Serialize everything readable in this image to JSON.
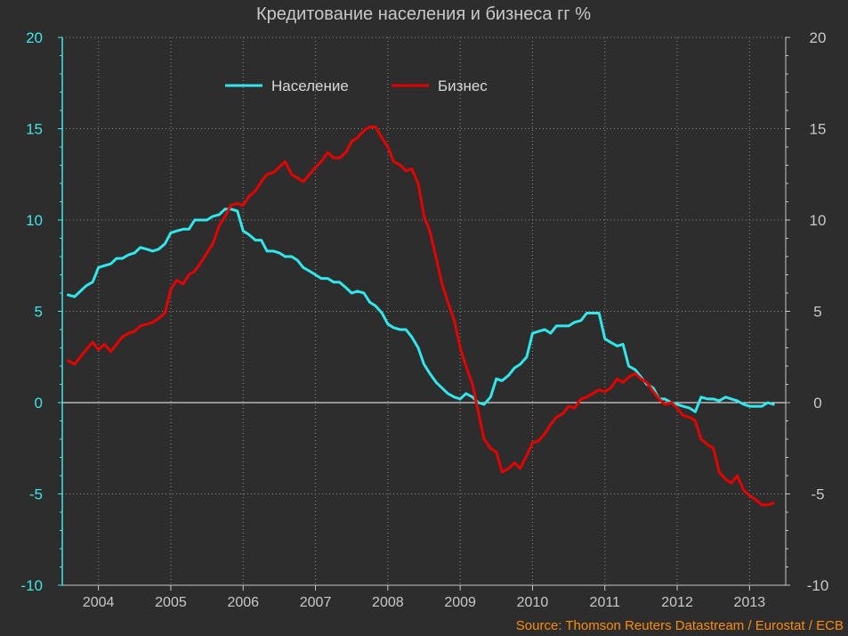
{
  "chart_data": {
    "type": "line",
    "title": "Кредитование населения и бизнеса гг %",
    "source": "Source: Thomson Reuters Datastream / Eurostat / ECB",
    "ylim": [
      -10,
      20
    ],
    "y_ticks": [
      "20",
      "15",
      "10",
      "5",
      "0",
      "-5",
      "-10"
    ],
    "y_tick_values": [
      20,
      15,
      10,
      5,
      0,
      -5,
      -10
    ],
    "x_range": [
      2003.5,
      2013.5
    ],
    "x_tick_labels": [
      "2004",
      "2005",
      "2006",
      "2007",
      "2008",
      "2009",
      "2010",
      "2011",
      "2012",
      "2013"
    ],
    "grid": true,
    "legend_position": "top-center",
    "colors": {
      "background": "#2d2d2d",
      "grid": "#888888",
      "zero_line": "#ffffff",
      "axis_left": "#3de6e6",
      "axis_right": "#c8c8c8",
      "source": "#ff8c00"
    },
    "series": [
      {
        "name": "Население",
        "color": "#30e8ec",
        "x": [
          2003.58,
          2003.67,
          2003.75,
          2003.83,
          2003.92,
          2004.0,
          2004.08,
          2004.17,
          2004.25,
          2004.33,
          2004.42,
          2004.5,
          2004.58,
          2004.67,
          2004.75,
          2004.83,
          2004.92,
          2005.0,
          2005.08,
          2005.17,
          2005.25,
          2005.33,
          2005.42,
          2005.5,
          2005.58,
          2005.67,
          2005.75,
          2005.83,
          2005.92,
          2006.0,
          2006.08,
          2006.17,
          2006.25,
          2006.33,
          2006.42,
          2006.5,
          2006.58,
          2006.67,
          2006.75,
          2006.83,
          2006.92,
          2007.0,
          2007.08,
          2007.17,
          2007.25,
          2007.33,
          2007.42,
          2007.5,
          2007.58,
          2007.67,
          2007.75,
          2007.83,
          2007.92,
          2008.0,
          2008.08,
          2008.17,
          2008.25,
          2008.33,
          2008.42,
          2008.5,
          2008.58,
          2008.67,
          2008.75,
          2008.83,
          2008.92,
          2009.0,
          2009.08,
          2009.17,
          2009.25,
          2009.33,
          2009.42,
          2009.5,
          2009.58,
          2009.67,
          2009.75,
          2009.83,
          2009.92,
          2010.0,
          2010.08,
          2010.17,
          2010.25,
          2010.33,
          2010.42,
          2010.5,
          2010.58,
          2010.67,
          2010.75,
          2010.83,
          2010.92,
          2011.0,
          2011.08,
          2011.17,
          2011.25,
          2011.33,
          2011.42,
          2011.5,
          2011.58,
          2011.67,
          2011.75,
          2011.83,
          2011.92,
          2012.0,
          2012.08,
          2012.17,
          2012.25,
          2012.33,
          2012.42,
          2012.5,
          2012.58,
          2012.67,
          2012.75,
          2012.83,
          2012.92,
          2013.0,
          2013.08,
          2013.17,
          2013.25,
          2013.33
        ],
        "values": [
          5.9,
          5.8,
          6.1,
          6.4,
          6.6,
          7.4,
          7.5,
          7.6,
          7.9,
          7.9,
          8.1,
          8.2,
          8.5,
          8.4,
          8.3,
          8.4,
          8.7,
          9.3,
          9.4,
          9.5,
          9.5,
          10.0,
          10.0,
          10.0,
          10.2,
          10.3,
          10.6,
          10.6,
          10.5,
          9.4,
          9.2,
          8.9,
          8.9,
          8.3,
          8.3,
          8.2,
          8.0,
          8.0,
          7.8,
          7.4,
          7.2,
          7.0,
          6.8,
          6.8,
          6.6,
          6.6,
          6.3,
          6.0,
          6.1,
          6.0,
          5.5,
          5.3,
          4.9,
          4.3,
          4.1,
          4.0,
          4.0,
          3.6,
          3.0,
          2.1,
          1.6,
          1.1,
          0.8,
          0.5,
          0.3,
          0.2,
          0.5,
          0.3,
          0.0,
          -0.1,
          0.3,
          1.3,
          1.2,
          1.5,
          1.9,
          2.1,
          2.5,
          3.8,
          3.9,
          4.0,
          3.8,
          4.2,
          4.2,
          4.2,
          4.4,
          4.5,
          4.9,
          4.9,
          4.9,
          3.5,
          3.3,
          3.1,
          3.2,
          2.0,
          1.8,
          1.4,
          1.0,
          0.8,
          0.2,
          0.2,
          0.0,
          -0.1,
          -0.2,
          -0.3,
          -0.5,
          0.3,
          0.2,
          0.2,
          0.1,
          0.3,
          0.2,
          0.1,
          -0.1,
          -0.2,
          -0.2,
          -0.2,
          0.0,
          -0.1
        ]
      },
      {
        "name": "Бизнес",
        "color": "#e60000",
        "x": [
          2003.58,
          2003.67,
          2003.75,
          2003.83,
          2003.92,
          2004.0,
          2004.08,
          2004.17,
          2004.25,
          2004.33,
          2004.42,
          2004.5,
          2004.58,
          2004.67,
          2004.75,
          2004.83,
          2004.92,
          2005.0,
          2005.08,
          2005.17,
          2005.25,
          2005.33,
          2005.42,
          2005.5,
          2005.58,
          2005.67,
          2005.75,
          2005.83,
          2005.92,
          2006.0,
          2006.08,
          2006.17,
          2006.25,
          2006.33,
          2006.42,
          2006.5,
          2006.58,
          2006.67,
          2006.75,
          2006.83,
          2006.92,
          2007.0,
          2007.08,
          2007.17,
          2007.25,
          2007.33,
          2007.42,
          2007.5,
          2007.58,
          2007.67,
          2007.75,
          2007.83,
          2007.92,
          2008.0,
          2008.08,
          2008.17,
          2008.25,
          2008.33,
          2008.42,
          2008.5,
          2008.58,
          2008.67,
          2008.75,
          2008.83,
          2008.92,
          2009.0,
          2009.08,
          2009.17,
          2009.25,
          2009.33,
          2009.42,
          2009.5,
          2009.58,
          2009.67,
          2009.75,
          2009.83,
          2009.92,
          2010.0,
          2010.08,
          2010.17,
          2010.25,
          2010.33,
          2010.42,
          2010.5,
          2010.58,
          2010.67,
          2010.75,
          2010.83,
          2010.92,
          2011.0,
          2011.08,
          2011.17,
          2011.25,
          2011.33,
          2011.42,
          2011.5,
          2011.58,
          2011.67,
          2011.75,
          2011.83,
          2011.92,
          2012.0,
          2012.08,
          2012.17,
          2012.25,
          2012.33,
          2012.42,
          2012.5,
          2012.58,
          2012.67,
          2012.75,
          2012.83,
          2012.92,
          2013.0,
          2013.08,
          2013.17,
          2013.25,
          2013.33
        ],
        "values": [
          2.3,
          2.1,
          2.5,
          2.9,
          3.3,
          2.9,
          3.2,
          2.8,
          3.2,
          3.6,
          3.8,
          3.9,
          4.2,
          4.3,
          4.4,
          4.6,
          4.9,
          6.2,
          6.7,
          6.5,
          7.0,
          7.2,
          7.7,
          8.2,
          8.7,
          9.7,
          10.2,
          10.8,
          10.9,
          10.8,
          11.3,
          11.6,
          12.1,
          12.5,
          12.6,
          12.9,
          13.2,
          12.5,
          12.3,
          12.1,
          12.5,
          12.9,
          13.2,
          13.7,
          13.4,
          13.4,
          13.7,
          14.3,
          14.5,
          14.9,
          15.1,
          15.1,
          14.5,
          14.0,
          13.2,
          13.0,
          12.7,
          12.8,
          12.0,
          10.2,
          9.4,
          7.9,
          6.5,
          5.5,
          4.5,
          3.0,
          2.0,
          1.0,
          -0.5,
          -2.0,
          -2.5,
          -2.7,
          -3.8,
          -3.6,
          -3.3,
          -3.6,
          -2.9,
          -2.2,
          -2.1,
          -1.7,
          -1.2,
          -0.8,
          -0.6,
          -0.2,
          -0.3,
          0.2,
          0.3,
          0.5,
          0.7,
          0.6,
          0.8,
          1.3,
          1.1,
          1.4,
          1.6,
          1.3,
          1.1,
          0.6,
          0.2,
          -0.1,
          0.0,
          -0.3,
          -0.7,
          -0.8,
          -1.0,
          -2.0,
          -2.3,
          -2.5,
          -3.8,
          -4.2,
          -4.4,
          -4.0,
          -4.8,
          -5.1,
          -5.3,
          -5.6,
          -5.6,
          -5.5
        ]
      }
    ]
  }
}
